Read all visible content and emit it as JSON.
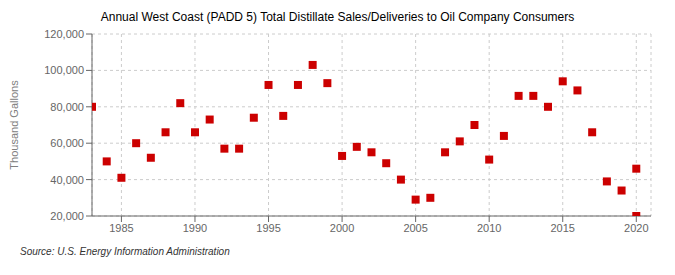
{
  "chart_data": {
    "type": "scatter",
    "title": "Annual West Coast (PADD 5) Total Distillate Sales/Deliveries to Oil Company Consumers",
    "ylabel": "Thousand Gallons",
    "annotations": [
      "Source: U.S. Energy Information Administration"
    ],
    "x": [
      1983,
      1984,
      1985,
      1986,
      1987,
      1988,
      1989,
      1990,
      1991,
      1992,
      1993,
      1994,
      1995,
      1996,
      1997,
      1998,
      1999,
      2000,
      2001,
      2002,
      2003,
      2004,
      2005,
      2006,
      2007,
      2008,
      2009,
      2010,
      2011,
      2012,
      2013,
      2014,
      2015,
      2016,
      2017,
      2018,
      2019,
      2020,
      2020
    ],
    "values": [
      80000,
      50000,
      41000,
      60000,
      52000,
      66000,
      82000,
      66000,
      73000,
      57000,
      57000,
      74000,
      92000,
      75000,
      92000,
      103000,
      93000,
      53000,
      58000,
      55000,
      49000,
      40000,
      29000,
      30000,
      55000,
      61000,
      70000,
      51000,
      64000,
      86000,
      86000,
      80000,
      94000,
      89000,
      66000,
      39000,
      34000,
      46000,
      20000
    ],
    "color": "#cc0000",
    "marker": "square",
    "xlim": [
      1983,
      2021
    ],
    "ylim": [
      20000,
      120000
    ],
    "xticks": [
      1985,
      1990,
      1995,
      2000,
      2005,
      2010,
      2015,
      2020
    ],
    "yticks": [
      {
        "value": 20000,
        "label": "20,000"
      },
      {
        "value": 40000,
        "label": "40,000"
      },
      {
        "value": 60000,
        "label": "60,000"
      },
      {
        "value": 80000,
        "label": "80,000"
      },
      {
        "value": 100000,
        "label": "100,000"
      },
      {
        "value": 120000,
        "label": "120,000"
      }
    ],
    "grid": true
  }
}
